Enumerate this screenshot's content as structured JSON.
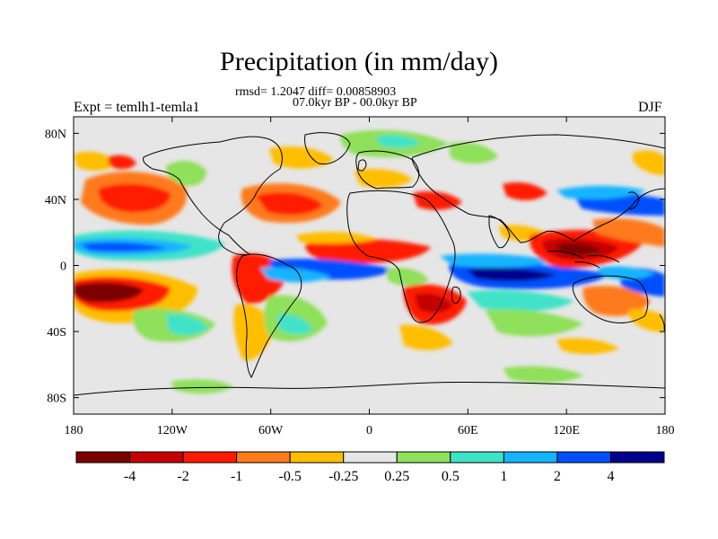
{
  "map": {
    "title": "Precipitation (in mm/day)",
    "stats_line": "rmsd= 1.2047 diff= 0.00858903",
    "period": "07.0kyr BP - 00.0kyr BP",
    "experiment": "Expt = temlh1-temla1",
    "season": "DJF",
    "lon_ticks": [
      "180",
      "120W",
      "60W",
      "0",
      "60E",
      "120E",
      "180"
    ],
    "lat_ticks": [
      "80N",
      "40N",
      "0",
      "40S",
      "80S"
    ],
    "colorbar": {
      "labels": [
        "-4",
        "-2",
        "-1",
        "-0.5",
        "-0.25",
        "0.25",
        "0.5",
        "1",
        "2",
        "4"
      ],
      "colors": [
        "#7a0000",
        "#c40000",
        "#ff1a00",
        "#ff7a1a",
        "#ffbe00",
        "#e6e6e6",
        "#8fe05a",
        "#3fe3c8",
        "#14b4ff",
        "#0050ff",
        "#00008c"
      ]
    },
    "land_color": "#e6e6e6"
  }
}
